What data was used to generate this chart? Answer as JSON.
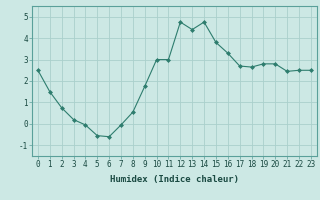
{
  "x": [
    0,
    1,
    2,
    3,
    4,
    5,
    6,
    7,
    8,
    9,
    10,
    11,
    12,
    13,
    14,
    15,
    16,
    17,
    18,
    19,
    20,
    21,
    22,
    23
  ],
  "y": [
    2.5,
    1.5,
    0.75,
    0.2,
    -0.05,
    -0.55,
    -0.6,
    -0.05,
    0.55,
    1.75,
    3.0,
    3.0,
    4.75,
    4.4,
    4.75,
    3.8,
    3.3,
    2.7,
    2.65,
    2.8,
    2.8,
    2.45,
    2.5,
    2.5
  ],
  "line_color": "#2e7d6e",
  "marker": "D",
  "marker_size": 2.0,
  "bg_color": "#cce8e4",
  "grid_color": "#aad0cc",
  "xlabel": "Humidex (Indice chaleur)",
  "ylim": [
    -1.5,
    5.5
  ],
  "xlim": [
    -0.5,
    23.5
  ],
  "yticks": [
    -1,
    0,
    1,
    2,
    3,
    4,
    5
  ],
  "xtick_labels": [
    "0",
    "1",
    "2",
    "3",
    "4",
    "5",
    "6",
    "7",
    "8",
    "9",
    "10",
    "11",
    "12",
    "13",
    "14",
    "15",
    "16",
    "17",
    "18",
    "19",
    "20",
    "21",
    "22",
    "23"
  ],
  "xlabel_fontsize": 6.5,
  "tick_fontsize": 5.5,
  "line_width": 0.8
}
